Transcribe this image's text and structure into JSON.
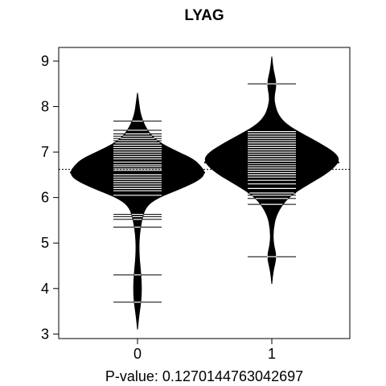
{
  "chart_data": {
    "type": "beanplot",
    "title": "LYAG",
    "xlabel": "P-value: 0.1270144763042697",
    "ylabel": "",
    "ylim": [
      2.9,
      9.3
    ],
    "y_ticks": [
      3,
      4,
      5,
      6,
      7,
      8,
      9
    ],
    "categories": [
      "0",
      "1"
    ],
    "overall_mean": 6.62,
    "grid": false,
    "beans": [
      {
        "category": "0",
        "mean": 6.55,
        "density": [
          [
            3.1,
            0.0
          ],
          [
            3.4,
            0.02
          ],
          [
            3.7,
            0.05
          ],
          [
            4.0,
            0.06
          ],
          [
            4.3,
            0.05
          ],
          [
            4.6,
            0.03
          ],
          [
            4.9,
            0.02
          ],
          [
            5.2,
            0.03
          ],
          [
            5.5,
            0.06
          ],
          [
            5.8,
            0.12
          ],
          [
            6.0,
            0.3
          ],
          [
            6.2,
            0.65
          ],
          [
            6.4,
            0.93
          ],
          [
            6.55,
            1.0
          ],
          [
            6.7,
            0.93
          ],
          [
            6.85,
            0.82
          ],
          [
            7.0,
            0.6
          ],
          [
            7.2,
            0.33
          ],
          [
            7.4,
            0.18
          ],
          [
            7.6,
            0.1
          ],
          [
            7.8,
            0.05
          ],
          [
            8.0,
            0.025
          ],
          [
            8.3,
            0.0
          ]
        ],
        "observations": [
          3.7,
          4.3,
          5.35,
          5.52,
          5.58,
          5.63,
          6.05,
          6.15,
          6.2,
          6.25,
          6.3,
          6.35,
          6.4,
          6.45,
          6.5,
          6.55,
          6.6,
          6.63,
          6.68,
          6.72,
          6.78,
          6.85,
          6.9,
          6.95,
          7.0,
          7.05,
          7.1,
          7.15,
          7.2,
          7.25,
          7.3,
          7.35,
          7.4,
          7.48,
          7.68
        ]
      },
      {
        "category": "1",
        "mean": 6.77,
        "density": [
          [
            4.1,
            0.0
          ],
          [
            4.4,
            0.02
          ],
          [
            4.7,
            0.07
          ],
          [
            5.0,
            0.02
          ],
          [
            5.3,
            0.02
          ],
          [
            5.6,
            0.06
          ],
          [
            5.9,
            0.18
          ],
          [
            6.1,
            0.33
          ],
          [
            6.3,
            0.55
          ],
          [
            6.5,
            0.78
          ],
          [
            6.7,
            0.95
          ],
          [
            6.85,
            1.0
          ],
          [
            7.0,
            0.92
          ],
          [
            7.2,
            0.7
          ],
          [
            7.4,
            0.45
          ],
          [
            7.6,
            0.22
          ],
          [
            7.8,
            0.1
          ],
          [
            8.0,
            0.05
          ],
          [
            8.2,
            0.03
          ],
          [
            8.5,
            0.07
          ],
          [
            8.8,
            0.02
          ],
          [
            9.1,
            0.0
          ]
        ],
        "observations": [
          4.7,
          5.85,
          5.98,
          6.05,
          6.1,
          6.2,
          6.3,
          6.38,
          6.45,
          6.5,
          6.55,
          6.6,
          6.65,
          6.7,
          6.75,
          6.8,
          6.85,
          6.9,
          6.95,
          7.0,
          7.05,
          7.1,
          7.15,
          7.2,
          7.25,
          7.3,
          7.35,
          7.4,
          7.45,
          8.5
        ]
      }
    ]
  }
}
